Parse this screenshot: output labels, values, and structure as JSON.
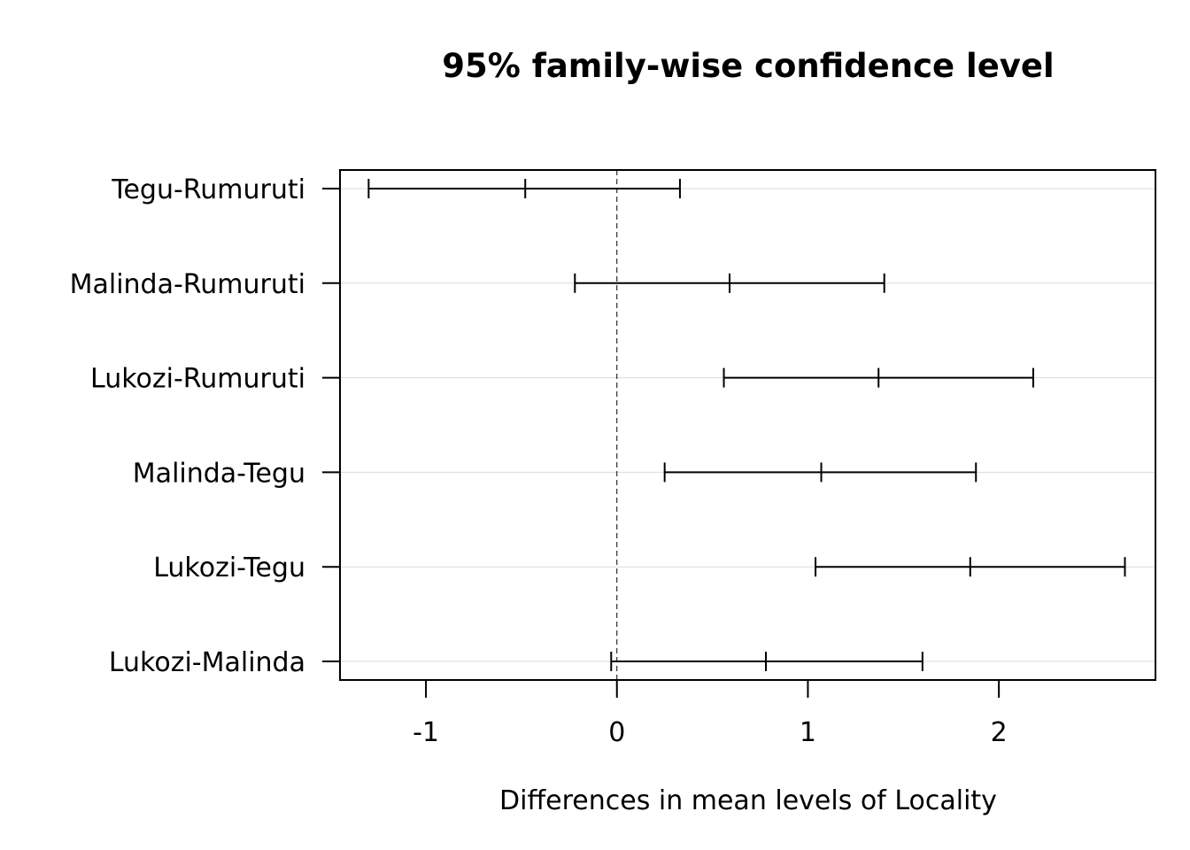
{
  "chart_data": {
    "type": "interval",
    "title": "95% family-wise confidence level",
    "xlabel": "Differences in mean levels of Locality",
    "ylabel": "",
    "xlim": [
      -1.45,
      2.82
    ],
    "xticks": [
      -1,
      0,
      1,
      2
    ],
    "xtick_labels": [
      "-1",
      "0",
      "1",
      "2"
    ],
    "reference_line": 0,
    "grid": "horizontal",
    "categories": [
      "Tegu-Rumuruti",
      "Malinda-Rumuruti",
      "Lukozi-Rumuruti",
      "Malinda-Tegu",
      "Lukozi-Tegu",
      "Lukozi-Malinda"
    ],
    "intervals": [
      {
        "lwr": -1.3,
        "diff": -0.48,
        "upr": 0.33
      },
      {
        "lwr": -0.22,
        "diff": 0.59,
        "upr": 1.4
      },
      {
        "lwr": 0.56,
        "diff": 1.37,
        "upr": 2.18
      },
      {
        "lwr": 0.25,
        "diff": 1.07,
        "upr": 1.88
      },
      {
        "lwr": 1.04,
        "diff": 1.85,
        "upr": 2.66
      },
      {
        "lwr": -0.03,
        "diff": 0.78,
        "upr": 1.6
      }
    ]
  }
}
